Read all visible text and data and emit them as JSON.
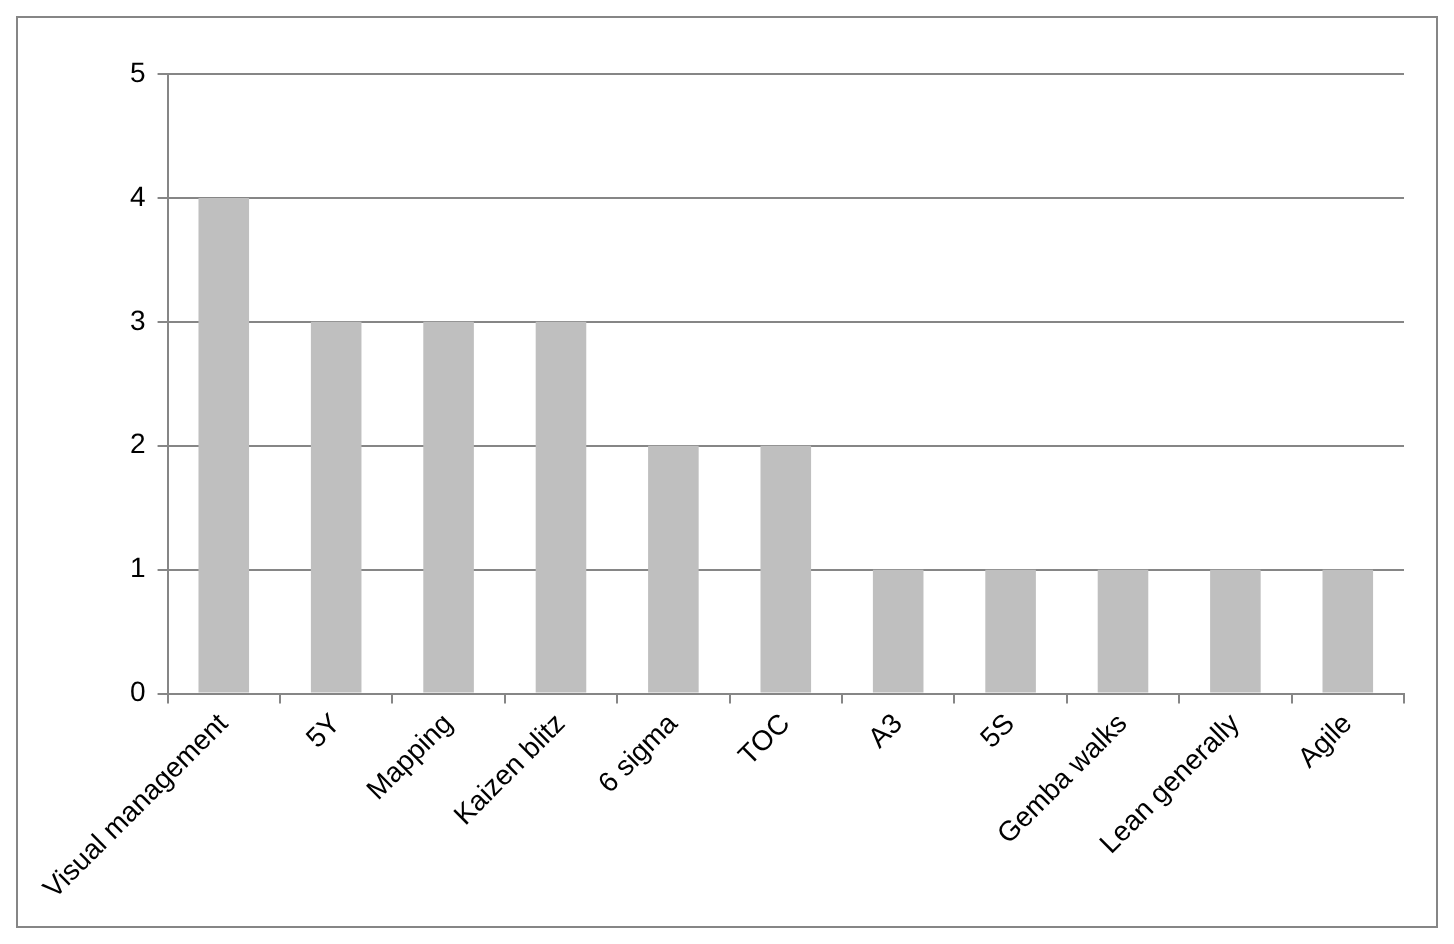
{
  "chart_data": {
    "type": "bar",
    "categories": [
      "Visual management",
      "5Y",
      "Mapping",
      "Kaizen blitz",
      "6 sigma",
      "TOC",
      "A3",
      "5S",
      "Gemba walks",
      "Lean generally",
      "Agile"
    ],
    "values": [
      4,
      3,
      3,
      3,
      2,
      2,
      1,
      1,
      1,
      1,
      1
    ],
    "color": "#bfbfbf",
    "ylim": [
      0,
      5
    ],
    "yticks": [
      0,
      1,
      2,
      3,
      4,
      5
    ],
    "grid": "y",
    "legend": false
  }
}
